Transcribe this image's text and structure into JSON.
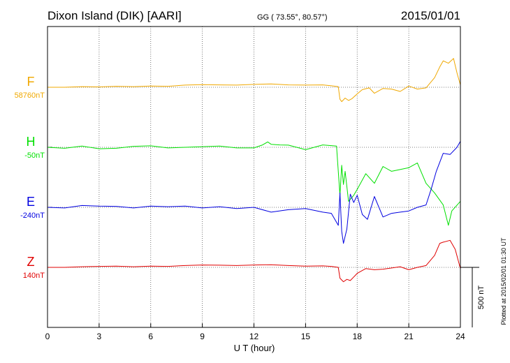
{
  "header": {
    "station": "Dixon Island (DIK)  [AARI]",
    "coords": "GG ( 73.55°,  80.57°)",
    "date": "2015/01/01"
  },
  "side_note": "Plotted at 2015/02/01 01:30 UT",
  "scale_label": "500 nT",
  "chart_data": {
    "type": "line",
    "xlabel": "U T (hour)",
    "ylabel": "",
    "xlim": [
      0,
      24
    ],
    "x_ticks": [
      0,
      3,
      6,
      9,
      12,
      15,
      18,
      21,
      24
    ],
    "grid": true,
    "grid_style": "dotted, vertical every 3 h and horizontal at each component baseline",
    "scale_bar_nT": 500,
    "series": [
      {
        "name": "F",
        "baseline_label": "58760nT",
        "color": "#f0a800",
        "x": [
          0,
          1,
          2,
          3,
          4,
          5,
          6,
          7,
          8,
          9,
          10,
          11,
          12,
          13,
          14,
          15,
          16,
          16.5,
          16.9,
          17,
          17.1,
          17.3,
          17.5,
          17.7,
          18,
          18.3,
          18.7,
          19,
          19.5,
          20,
          20.5,
          21,
          21.5,
          22,
          22.5,
          22.8,
          23,
          23.3,
          23.6,
          23.8,
          24
        ],
        "values": [
          0,
          0,
          5,
          3,
          8,
          5,
          10,
          8,
          18,
          22,
          20,
          18,
          24,
          28,
          20,
          18,
          20,
          12,
          5,
          -100,
          -120,
          -90,
          -110,
          -95,
          -55,
          -20,
          -5,
          -50,
          -10,
          -15,
          -35,
          10,
          -15,
          -5,
          80,
          170,
          220,
          200,
          240,
          120,
          20
        ]
      },
      {
        "name": "H",
        "baseline_label": "-50nT",
        "color": "#00e000",
        "x": [
          0,
          1,
          2,
          3,
          4,
          5,
          6,
          7,
          8,
          9,
          10,
          11,
          12,
          12.5,
          12.8,
          13,
          13.5,
          14,
          15,
          16,
          16.8,
          17,
          17.1,
          17.2,
          17.3,
          17.5,
          17.8,
          18,
          18.5,
          19,
          19.5,
          20,
          21,
          21.5,
          22,
          22.5,
          23,
          23.3,
          23.5,
          24
        ],
        "values": [
          0,
          -8,
          10,
          -12,
          -8,
          8,
          12,
          -5,
          0,
          5,
          10,
          -5,
          -5,
          20,
          45,
          25,
          20,
          18,
          -20,
          20,
          10,
          -400,
          -150,
          -310,
          -200,
          -450,
          -400,
          -350,
          -220,
          -300,
          -160,
          -200,
          -170,
          -130,
          -300,
          -380,
          -480,
          -650,
          -530,
          -450
        ]
      },
      {
        "name": "E",
        "baseline_label": "-240nT",
        "color": "#0000e0",
        "x": [
          0,
          1,
          2,
          3,
          4,
          5,
          6,
          7,
          8,
          9,
          10,
          11,
          12,
          13,
          14,
          15,
          16,
          16.5,
          16.9,
          17,
          17.1,
          17.2,
          17.4,
          17.6,
          17.8,
          18,
          18.3,
          18.6,
          19,
          19.5,
          20,
          20.5,
          21,
          21.5,
          22,
          22.3,
          22.6,
          23,
          23.4,
          23.8,
          24
        ],
        "values": [
          0,
          -5,
          15,
          10,
          8,
          -5,
          10,
          5,
          10,
          -5,
          5,
          -10,
          0,
          -40,
          -20,
          -10,
          -40,
          -50,
          -150,
          120,
          -200,
          -300,
          -180,
          110,
          40,
          100,
          -60,
          -100,
          90,
          -80,
          -50,
          -40,
          -30,
          0,
          20,
          150,
          300,
          450,
          440,
          500,
          550
        ]
      },
      {
        "name": "Z",
        "baseline_label": "140nT",
        "color": "#e00000",
        "x": [
          0,
          1,
          2,
          3,
          4,
          5,
          6,
          7,
          8,
          9,
          10,
          11,
          12,
          13,
          14,
          15,
          16,
          16.5,
          16.9,
          17,
          17.2,
          17.4,
          17.6,
          17.8,
          18,
          18.5,
          19,
          19.5,
          20,
          20.5,
          21,
          21.5,
          22,
          22.5,
          22.8,
          23,
          23.4,
          23.7,
          24
        ],
        "values": [
          0,
          0,
          5,
          8,
          10,
          5,
          10,
          8,
          15,
          20,
          18,
          15,
          20,
          22,
          15,
          10,
          12,
          8,
          0,
          -90,
          -120,
          -100,
          -110,
          -80,
          -50,
          -10,
          -20,
          -15,
          -5,
          5,
          -20,
          0,
          15,
          100,
          200,
          210,
          225,
          150,
          -10
        ]
      }
    ]
  }
}
